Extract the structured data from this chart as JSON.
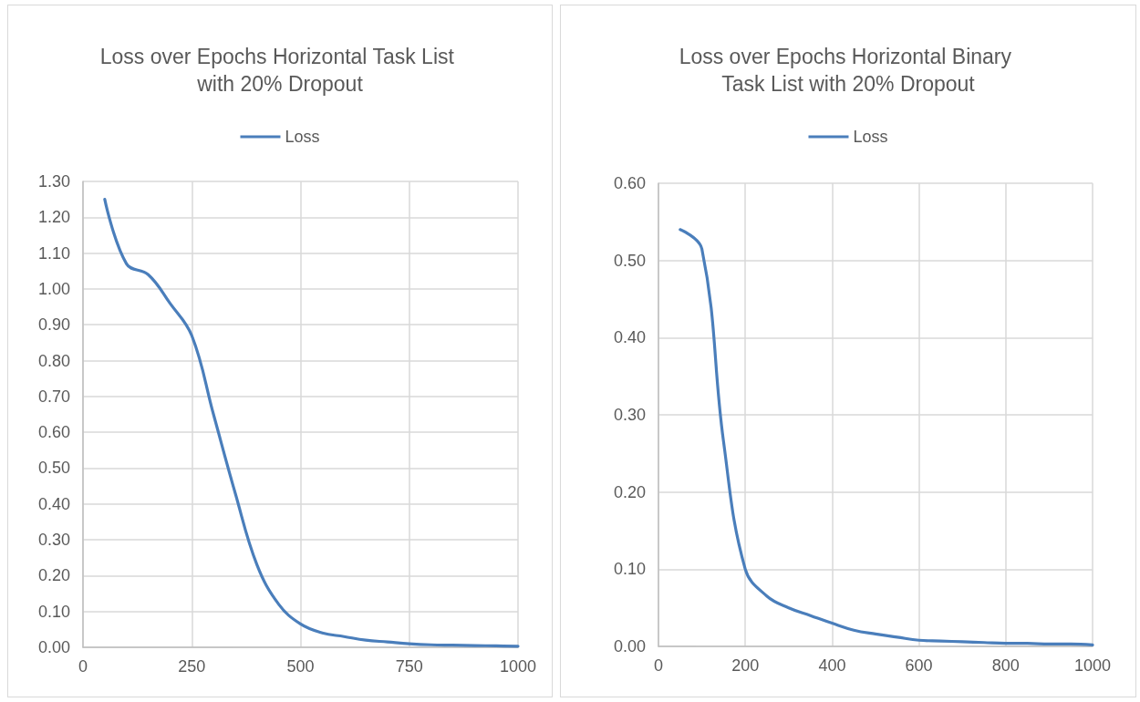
{
  "chart_data": [
    {
      "type": "line",
      "title": "Loss over Epochs Horizontal Task List with 20% Dropout",
      "x": [
        50,
        100,
        150,
        200,
        250,
        300,
        350,
        400,
        450,
        500,
        550,
        600,
        650,
        700,
        750,
        800,
        850,
        900,
        950,
        1000
      ],
      "series": [
        {
          "name": "Loss",
          "color": "#4a7ebb",
          "values": [
            1.25,
            1.07,
            1.04,
            0.96,
            0.87,
            0.65,
            0.43,
            0.23,
            0.12,
            0.065,
            0.04,
            0.03,
            0.02,
            0.015,
            0.01,
            0.007,
            0.006,
            0.005,
            0.004,
            0.003
          ]
        }
      ],
      "xlim": [
        0,
        1000
      ],
      "xticks": [
        0,
        250,
        500,
        750,
        1000
      ],
      "ylim": [
        0,
        1.3
      ],
      "yticks": [
        {
          "value": 0,
          "label": "0.00"
        },
        {
          "value": 0.1,
          "label": "0.10"
        },
        {
          "value": 0.2,
          "label": "0.20"
        },
        {
          "value": 0.3,
          "label": "0.30"
        },
        {
          "value": 0.4,
          "label": "0.40"
        },
        {
          "value": 0.5,
          "label": "0.50"
        },
        {
          "value": 0.6,
          "label": "0.60"
        },
        {
          "value": 0.7,
          "label": "0.70"
        },
        {
          "value": 0.8,
          "label": "0.80"
        },
        {
          "value": 0.9,
          "label": "0.90"
        },
        {
          "value": 1,
          "label": "1.00"
        },
        {
          "value": 1.1,
          "label": "1.10"
        },
        {
          "value": 1.2,
          "label": "1.20"
        },
        {
          "value": 1.3,
          "label": "1.30"
        }
      ],
      "grid": true,
      "legend": "top",
      "marker": "none"
    },
    {
      "type": "line",
      "title": "Loss over Epochs Horizontal Binary Task List with 20% Dropout",
      "x": [
        50,
        100,
        150,
        200,
        250,
        300,
        350,
        400,
        450,
        500,
        550,
        600,
        650,
        700,
        750,
        800,
        850,
        900,
        950,
        1000
      ],
      "series": [
        {
          "name": "Loss",
          "color": "#4a7ebb",
          "values": [
            0.54,
            0.515,
            0.265,
            0.1,
            0.065,
            0.05,
            0.04,
            0.03,
            0.021,
            0.016,
            0.012,
            0.008,
            0.007,
            0.006,
            0.005,
            0.004,
            0.004,
            0.003,
            0.003,
            0.002
          ]
        }
      ],
      "xlim": [
        0,
        1000
      ],
      "xticks": [
        0,
        200,
        400,
        600,
        800,
        1000
      ],
      "ylim": [
        0,
        0.6
      ],
      "yticks": [
        {
          "value": 0,
          "label": "0.00"
        },
        {
          "value": 0.1,
          "label": "0.10"
        },
        {
          "value": 0.2,
          "label": "0.20"
        },
        {
          "value": 0.3,
          "label": "0.30"
        },
        {
          "value": 0.4,
          "label": "0.40"
        },
        {
          "value": 0.5,
          "label": "0.50"
        },
        {
          "value": 0.6,
          "label": "0.60"
        }
      ],
      "grid": true,
      "legend": "top",
      "marker": "none"
    }
  ]
}
